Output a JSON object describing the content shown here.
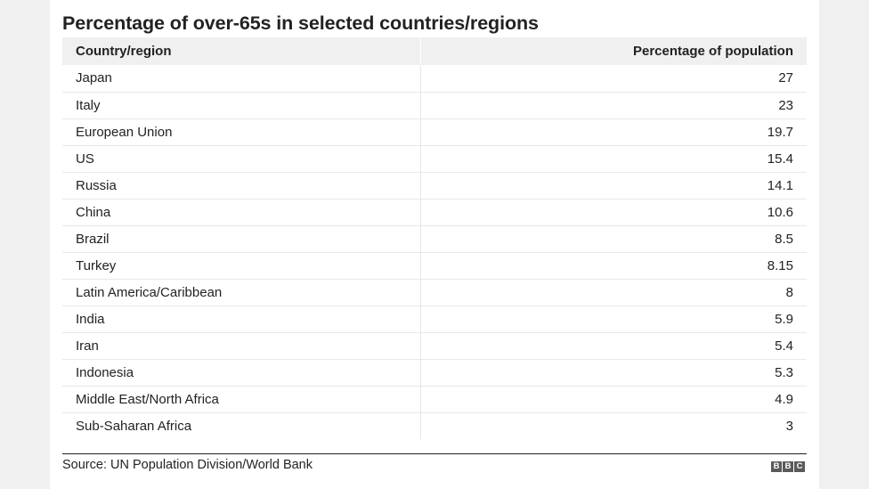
{
  "chart_data": {
    "type": "table",
    "title": "Percentage of over-65s in selected countries/regions",
    "columns": [
      "Country/region",
      "Percentage of population"
    ],
    "rows": [
      {
        "region": "Japan",
        "value": "27"
      },
      {
        "region": "Italy",
        "value": "23"
      },
      {
        "region": "European Union",
        "value": "19.7"
      },
      {
        "region": "US",
        "value": "15.4"
      },
      {
        "region": "Russia",
        "value": "14.1"
      },
      {
        "region": "China",
        "value": "10.6"
      },
      {
        "region": "Brazil",
        "value": "8.5"
      },
      {
        "region": "Turkey",
        "value": "8.15"
      },
      {
        "region": "Latin America/Caribbean",
        "value": "8"
      },
      {
        "region": "India",
        "value": "5.9"
      },
      {
        "region": "Iran",
        "value": "5.4"
      },
      {
        "region": "Indonesia",
        "value": "5.3"
      },
      {
        "region": "Middle East/North Africa",
        "value": "4.9"
      },
      {
        "region": "Sub-Saharan Africa",
        "value": "3"
      }
    ]
  },
  "source": "Source: UN Population Division/World Bank",
  "logo": {
    "letters": [
      "B",
      "B",
      "C"
    ]
  }
}
